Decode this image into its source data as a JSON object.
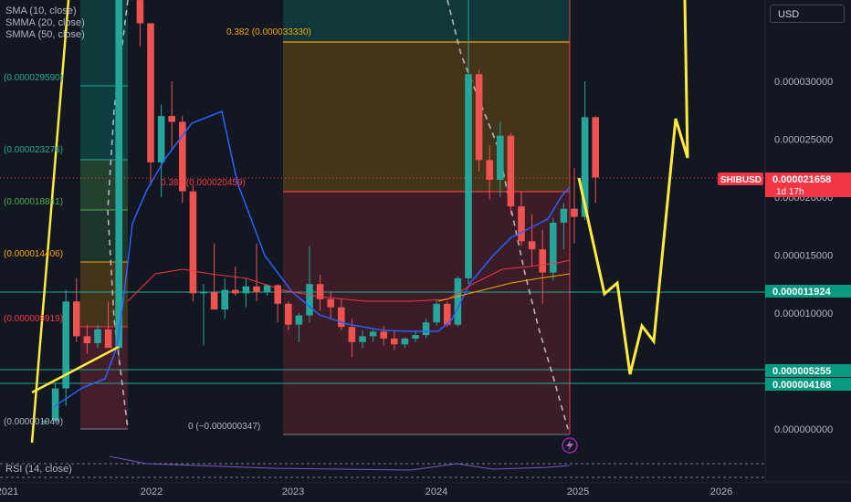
{
  "legend": {
    "sma": "SMA (10, close)",
    "smma20": "SMMA (20, close)",
    "smma50": "SMMA (50, close)"
  },
  "currency": "USD",
  "rsi_label": "RSI (14, close)",
  "chart_data": {
    "type": "candlestick",
    "symbol": "SHIBUSD",
    "countdown": "1d 17h",
    "y_ticks": [
      3e-05,
      2.5e-05,
      2e-05,
      1.5e-05,
      1e-05,
      0
    ],
    "y_tick_labels": [
      "0.000030000",
      "0.000025000",
      "0.000020000",
      "0.000015000",
      "0.000010000",
      "0.000000000"
    ],
    "x_ticks": [
      "2021",
      "2022",
      "2023",
      "2024",
      "2025",
      "2026"
    ],
    "price_badges": [
      {
        "label": "0.000021658",
        "color": "#f23645"
      },
      {
        "label": "0.000011924",
        "color": "#089981"
      },
      {
        "label": "0.000005255",
        "color": "#089981"
      },
      {
        "label": "0.000004168",
        "color": "#089981"
      }
    ],
    "fib_right": [
      {
        "label": "0.382 (0.000033330)",
        "color": "#f7a600"
      },
      {
        "label": "0.386 (0.000020459)",
        "color": "#f23645"
      },
      {
        "label": "0 (−0.000000347)",
        "color": "#b2b5be"
      }
    ],
    "fib_left": [
      {
        "label": "(0.000029590)",
        "color": "#22ab94"
      },
      {
        "label": "(0.000023276)",
        "color": "#22ab94"
      },
      {
        "label": "(0.000018841)",
        "color": "#4caf50"
      },
      {
        "label": "(0.000014406)",
        "color": "#f7a600"
      },
      {
        "label": "(0.000008919)",
        "color": "#f23645"
      },
      {
        "label": "(0.000001049)",
        "color": "#b2b5be"
      }
    ],
    "candles": [
      {
        "o": 6e-07,
        "h": 8e-07,
        "l": 4e-07,
        "c": 7e-07
      },
      {
        "o": 7e-07,
        "h": 4e-06,
        "l": 6e-07,
        "c": 3.5e-06
      },
      {
        "o": 3.5e-06,
        "h": 1.2e-05,
        "l": 2e-06,
        "c": 1.1e-05
      },
      {
        "o": 1.1e-05,
        "h": 1.3e-05,
        "l": 7.5e-06,
        "c": 8e-06
      },
      {
        "o": 8e-06,
        "h": 9e-06,
        "l": 6.5e-06,
        "c": 7.4e-06
      },
      {
        "o": 7.4e-06,
        "h": 9e-06,
        "l": 7e-06,
        "c": 8.6e-06
      },
      {
        "o": 8.6e-06,
        "h": 1.1e-05,
        "l": 7e-06,
        "c": 7e-06
      },
      {
        "o": 7e-06,
        "h": 5e-05,
        "l": 6e-06,
        "c": 5e-05
      },
      {
        "o": 5e-05,
        "h": 5e-05,
        "l": 3.7e-05,
        "c": 3.7e-05
      },
      {
        "o": 3.7e-05,
        "h": 3.9e-05,
        "l": 3.3e-05,
        "c": 3.5e-05
      },
      {
        "o": 3.5e-05,
        "h": 3.5e-05,
        "l": 2.1e-05,
        "c": 2.3e-05
      },
      {
        "o": 2.3e-05,
        "h": 2.8e-05,
        "l": 2e-05,
        "c": 2.7e-05
      },
      {
        "o": 2.7e-05,
        "h": 3e-05,
        "l": 2.4e-05,
        "c": 2.65e-05
      },
      {
        "o": 2.65e-05,
        "h": 2.7e-05,
        "l": 1.95e-05,
        "c": 2.05e-05
      },
      {
        "o": 2.05e-05,
        "h": 2.1e-05,
        "l": 1.1e-05,
        "c": 1.17e-05
      },
      {
        "o": 1.17e-05,
        "h": 1.25e-05,
        "l": 7.2e-06,
        "c": 1.18e-05
      },
      {
        "o": 1.18e-05,
        "h": 1.6e-05,
        "l": 1.05e-05,
        "c": 1.03e-05
      },
      {
        "o": 1.03e-05,
        "h": 1.3e-05,
        "l": 9.5e-06,
        "c": 1.2e-05
      },
      {
        "o": 1.2e-05,
        "h": 1.4e-05,
        "l": 1.15e-05,
        "c": 1.17e-05
      },
      {
        "o": 1.17e-05,
        "h": 1.3e-05,
        "l": 1.05e-05,
        "c": 1.23e-05
      },
      {
        "o": 1.23e-05,
        "h": 1.6e-05,
        "l": 1.1e-05,
        "c": 1.18e-05
      },
      {
        "o": 1.18e-05,
        "h": 1.25e-05,
        "l": 1.15e-05,
        "c": 1.24e-05
      },
      {
        "o": 1.24e-05,
        "h": 1.25e-05,
        "l": 9.2e-06,
        "c": 1.08e-05
      },
      {
        "o": 1.08e-05,
        "h": 1.1e-05,
        "l": 8.5e-06,
        "c": 9e-06
      },
      {
        "o": 9e-06,
        "h": 1e-05,
        "l": 7.5e-06,
        "c": 9.8e-06
      },
      {
        "o": 9.8e-06,
        "h": 1.58e-05,
        "l": 9.2e-06,
        "c": 1.25e-05
      },
      {
        "o": 1.25e-05,
        "h": 1.33e-05,
        "l": 1.02e-05,
        "c": 1.12e-05
      },
      {
        "o": 1.12e-05,
        "h": 1.19e-05,
        "l": 9.5e-06,
        "c": 1.05e-05
      },
      {
        "o": 1.05e-05,
        "h": 1.12e-05,
        "l": 8.5e-06,
        "c": 8.8e-06
      },
      {
        "o": 8.8e-06,
        "h": 9.5e-06,
        "l": 6.2e-06,
        "c": 7.5e-06
      },
      {
        "o": 7.5e-06,
        "h": 8.5e-06,
        "l": 7e-06,
        "c": 8e-06
      },
      {
        "o": 8e-06,
        "h": 8.6e-06,
        "l": 7.5e-06,
        "c": 8.4e-06
      },
      {
        "o": 8.4e-06,
        "h": 8.9e-06,
        "l": 7.2e-06,
        "c": 7.8e-06
      },
      {
        "o": 7.8e-06,
        "h": 8.5e-06,
        "l": 6.8e-06,
        "c": 7.3e-06
      },
      {
        "o": 7.3e-06,
        "h": 7.9e-06,
        "l": 7e-06,
        "c": 7.8e-06
      },
      {
        "o": 7.8e-06,
        "h": 8.5e-06,
        "l": 7.5e-06,
        "c": 8.1e-06
      },
      {
        "o": 8.1e-06,
        "h": 9.5e-06,
        "l": 7.8e-06,
        "c": 9.2e-06
      },
      {
        "o": 9.2e-06,
        "h": 1.12e-05,
        "l": 8.9e-06,
        "c": 1.08e-05
      },
      {
        "o": 1.08e-05,
        "h": 1.1e-05,
        "l": 8.8e-06,
        "c": 9e-06
      },
      {
        "o": 9e-06,
        "h": 1.32e-05,
        "l": 8.8e-06,
        "c": 1.3e-05
      },
      {
        "o": 1.3e-05,
        "h": 4.55e-05,
        "l": 1.25e-05,
        "c": 3.06e-05
      },
      {
        "o": 3.06e-05,
        "h": 3.1e-05,
        "l": 2.22e-05,
        "c": 2.32e-05
      },
      {
        "o": 2.32e-05,
        "h": 2.45e-05,
        "l": 1.98e-05,
        "c": 2.15e-05
      },
      {
        "o": 2.15e-05,
        "h": 2.65e-05,
        "l": 2e-05,
        "c": 2.53e-05
      },
      {
        "o": 2.53e-05,
        "h": 2.55e-05,
        "l": 1.85e-05,
        "c": 1.92e-05
      },
      {
        "o": 1.92e-05,
        "h": 2.05e-05,
        "l": 1.58e-05,
        "c": 1.62e-05
      },
      {
        "o": 1.62e-05,
        "h": 1.85e-05,
        "l": 1.4e-05,
        "c": 1.55e-05
      },
      {
        "o": 1.55e-05,
        "h": 1.72e-05,
        "l": 1.08e-05,
        "c": 1.35e-05
      },
      {
        "o": 1.35e-05,
        "h": 1.82e-05,
        "l": 1.28e-05,
        "c": 1.78e-05
      },
      {
        "o": 1.78e-05,
        "h": 1.95e-05,
        "l": 1.55e-05,
        "c": 1.9e-05
      },
      {
        "o": 1.9e-05,
        "h": 2.25e-05,
        "l": 1.6e-05,
        "c": 1.83e-05
      },
      {
        "o": 1.83e-05,
        "h": 3e-05,
        "l": 1.8e-05,
        "c": 2.69e-05
      },
      {
        "o": 2.69e-05,
        "h": 2.7e-05,
        "l": 1.95e-05,
        "c": 2.17e-05
      }
    ]
  }
}
